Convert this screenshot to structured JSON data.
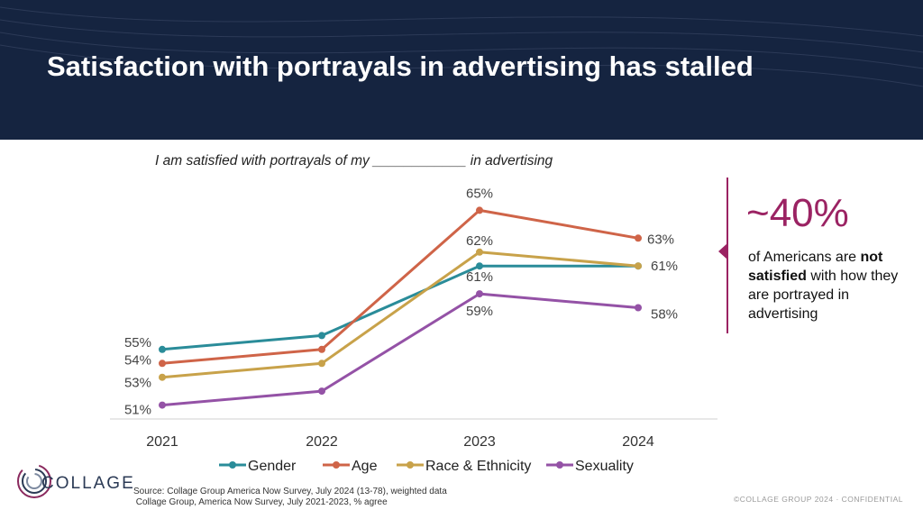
{
  "header": {
    "title": "Satisfaction with portrayals in advertising has stalled"
  },
  "colors": {
    "header_bg": "#152440",
    "accent": "#9b2363"
  },
  "chart_data": {
    "type": "line",
    "title": "I am satisfied with portrayals of my ____________ in advertising",
    "categories": [
      "2021",
      "2022",
      "2023",
      "2024"
    ],
    "ylim": [
      50,
      66
    ],
    "grid": false,
    "legend_position": "bottom",
    "series": [
      {
        "name": "Gender",
        "color": "#2a8c99",
        "values": [
          55,
          56,
          61,
          61
        ],
        "labels": [
          "55%",
          null,
          "61%",
          null
        ]
      },
      {
        "name": "Age",
        "color": "#cf6448",
        "values": [
          54,
          55,
          65,
          63
        ],
        "labels": [
          "54%",
          null,
          "65%",
          "63%"
        ]
      },
      {
        "name": "Race & Ethnicity",
        "color": "#c8a24a",
        "values": [
          53,
          54,
          62,
          61
        ],
        "labels": [
          "53%",
          null,
          "62%",
          "61%"
        ]
      },
      {
        "name": "Sexuality",
        "color": "#9452a6",
        "values": [
          51,
          52,
          59,
          58
        ],
        "labels": [
          "51%",
          null,
          "59%",
          "58%"
        ]
      }
    ]
  },
  "callout": {
    "stat": "~40%",
    "text_parts": [
      "of Americans are ",
      "not satisfied",
      " with how they are portrayed in advertising"
    ]
  },
  "footer": {
    "logo_text": "COLLAGE",
    "source_line1": "Source: Collage Group America Now Survey, July 2024 (13-78), weighted data",
    "source_line2": " Collage Group, America Now Survey, July 2021-2023, % agree",
    "confidential": "©COLLAGE GROUP 2024 · CONFIDENTIAL"
  }
}
